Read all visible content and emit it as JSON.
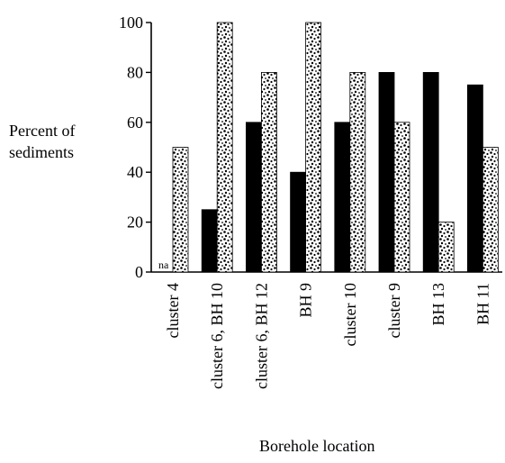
{
  "chart_data": {
    "type": "bar",
    "ylabel_lines": [
      "Percent of",
      "sediments"
    ],
    "xlabel": "Borehole location",
    "ylim": [
      0,
      100
    ],
    "yticks": [
      0,
      20,
      40,
      60,
      80,
      100
    ],
    "categories": [
      "cluster 4",
      "cluster 6, BH 10",
      "cluster 6, BH 12",
      "BH 9",
      "cluster 10",
      "cluster 9",
      "BH 13",
      "BH 11"
    ],
    "series": [
      {
        "values": [
          null,
          25,
          60,
          40,
          60,
          80,
          80,
          75
        ],
        "color": "#000000",
        "pattern": "solid"
      },
      {
        "values": [
          50,
          100,
          80,
          100,
          80,
          60,
          20,
          50
        ],
        "color": "#ffffff",
        "pattern": "speckled"
      }
    ],
    "annotations": [
      {
        "category": "cluster 4",
        "series": 0,
        "text": "na"
      }
    ],
    "grid": false,
    "legend": "none"
  }
}
